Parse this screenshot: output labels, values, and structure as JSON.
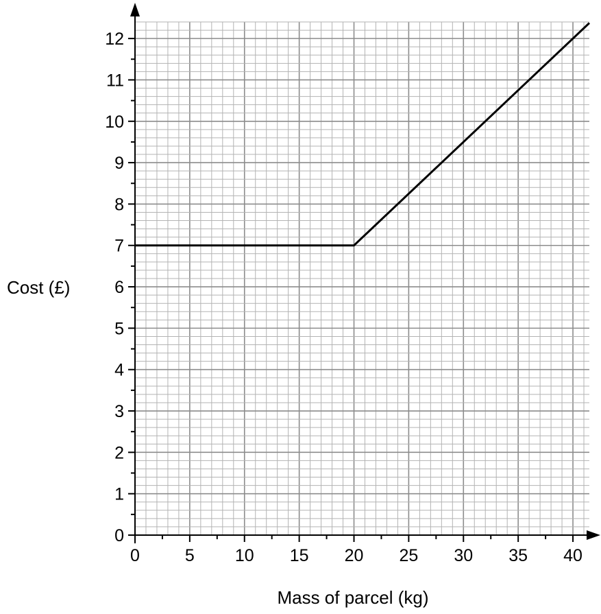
{
  "chart_data": {
    "type": "line",
    "title": "",
    "xlabel": "Mass of parcel (kg)",
    "ylabel": "Cost (£)",
    "xlim": [
      0,
      41.5
    ],
    "ylim": [
      0,
      12.4
    ],
    "x_ticks": [
      "0",
      "5",
      "10",
      "15",
      "20",
      "25",
      "30",
      "35",
      "40"
    ],
    "y_ticks": [
      "0",
      "1",
      "2",
      "3",
      "4",
      "5",
      "6",
      "7",
      "8",
      "9",
      "10",
      "11",
      "12"
    ],
    "x_tick_values": [
      0,
      5,
      10,
      15,
      20,
      25,
      30,
      35,
      40
    ],
    "y_tick_values": [
      0,
      1,
      2,
      3,
      4,
      5,
      6,
      7,
      8,
      9,
      10,
      11,
      12
    ],
    "grid": true,
    "legend": "none",
    "series": [
      {
        "x": [
          0,
          20,
          41.5
        ],
        "y": [
          7,
          7,
          12.375
        ]
      }
    ]
  }
}
